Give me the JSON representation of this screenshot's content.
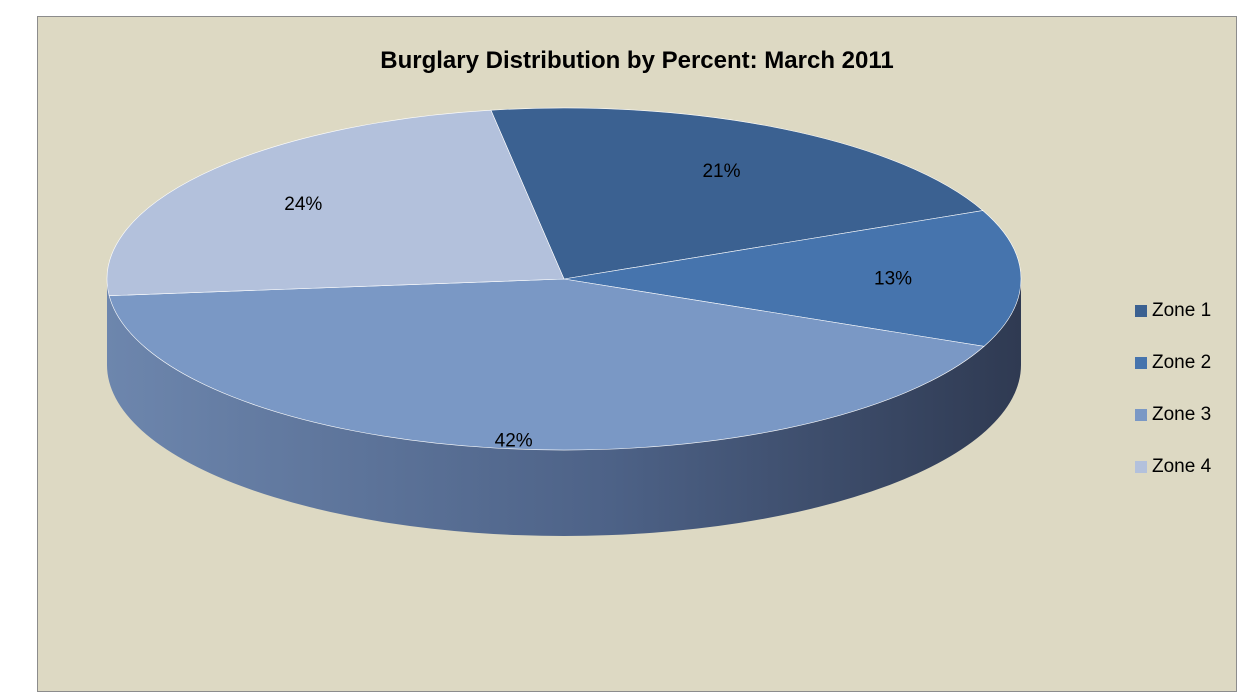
{
  "colors": {
    "background": "#ddd9c3",
    "zone1": "#3b6191",
    "zone2": "#4674ad",
    "zone3": "#7a98c5",
    "zone4": "#b3c1dc"
  },
  "chart_data": {
    "type": "pie",
    "title": "Burglary Distribution by Percent:  March 2011",
    "categories": [
      "Zone 1",
      "Zone 2",
      "Zone 3",
      "Zone 4"
    ],
    "values": [
      21,
      13,
      42,
      24
    ],
    "labels": [
      "21%",
      "13%",
      "42%",
      "24%"
    ],
    "legend_position": "right",
    "three_d": true
  }
}
